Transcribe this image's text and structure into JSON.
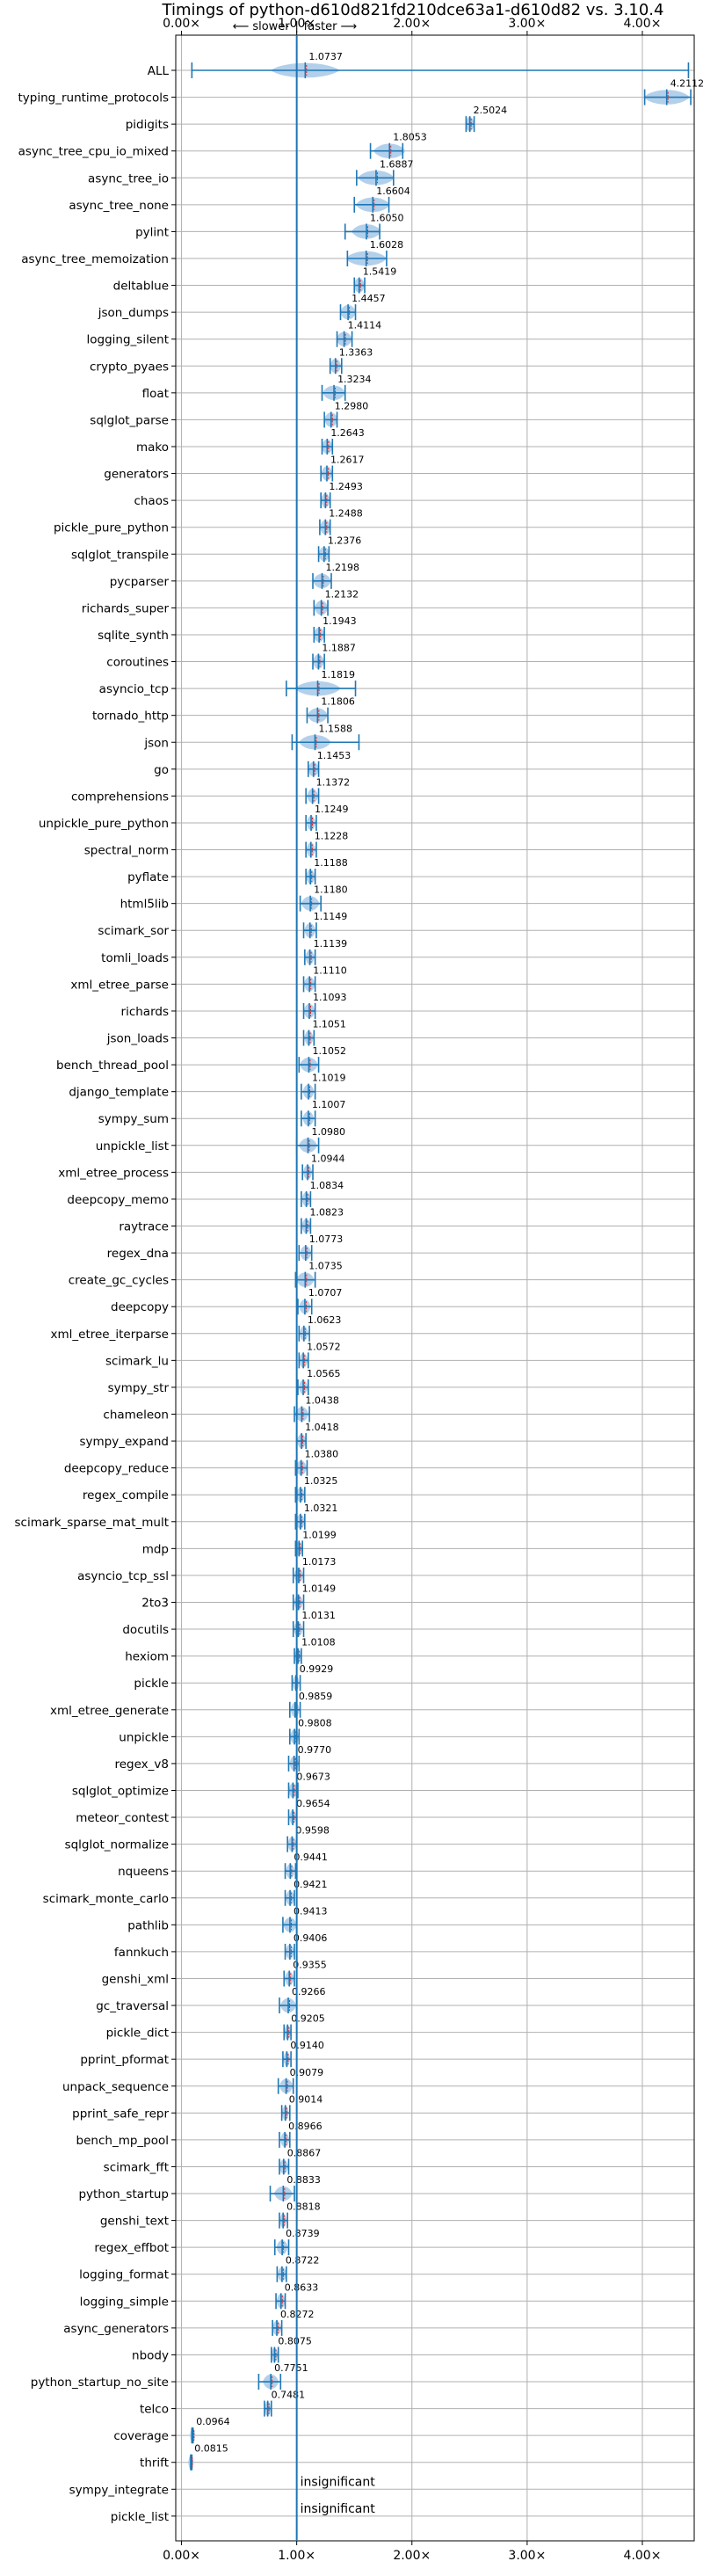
{
  "chart_data": {
    "type": "violin-errorbar",
    "title": "Timings of python-d610d821fd210dce63a1-d610d82 vs. 3.10.4",
    "direction_labels": {
      "slower": "⟵ slower",
      "separator": "|",
      "faster": "faster ⟶"
    },
    "xlim": [
      -0.05,
      4.45
    ],
    "xticks": [
      0,
      1,
      2,
      3,
      4
    ],
    "xtick_labels": [
      "0.00×",
      "1.00×",
      "2.00×",
      "3.00×",
      "4.00×"
    ],
    "reference_line": 1.0,
    "grid": true,
    "colors": {
      "accent": "#1f77b4",
      "violin": "#a6c8e8",
      "median": "#d62728",
      "grid": "#b0b0b0"
    },
    "benchmarks": [
      {
        "name": "ALL",
        "value": 1.0737,
        "label": "1.0737",
        "err_lo": 0.09,
        "err_hi": 4.4,
        "spread": 0.3
      },
      {
        "name": "typing_runtime_protocols",
        "value": 4.2112,
        "label": "4.2112",
        "err_lo": 4.02,
        "err_hi": 4.42,
        "spread": 0.2
      },
      {
        "name": "pidigits",
        "value": 2.5024,
        "label": "2.5024",
        "err_lo": 2.47,
        "err_hi": 2.54,
        "spread": 0.04
      },
      {
        "name": "async_tree_cpu_io_mixed",
        "value": 1.8053,
        "label": "1.8053",
        "err_lo": 1.64,
        "err_hi": 1.92,
        "spread": 0.14
      },
      {
        "name": "async_tree_io",
        "value": 1.6887,
        "label": "1.6887",
        "err_lo": 1.52,
        "err_hi": 1.84,
        "spread": 0.16
      },
      {
        "name": "async_tree_none",
        "value": 1.6604,
        "label": "1.6604",
        "err_lo": 1.5,
        "err_hi": 1.8,
        "spread": 0.15
      },
      {
        "name": "pylint",
        "value": 1.605,
        "label": "1.6050",
        "err_lo": 1.42,
        "err_hi": 1.72,
        "spread": 0.13
      },
      {
        "name": "async_tree_memoization",
        "value": 1.6028,
        "label": "1.6028",
        "err_lo": 1.44,
        "err_hi": 1.78,
        "spread": 0.18
      },
      {
        "name": "deltablue",
        "value": 1.5419,
        "label": "1.5419",
        "err_lo": 1.5,
        "err_hi": 1.59,
        "spread": 0.05
      },
      {
        "name": "json_dumps",
        "value": 1.4457,
        "label": "1.4457",
        "err_lo": 1.38,
        "err_hi": 1.51,
        "spread": 0.07
      },
      {
        "name": "logging_silent",
        "value": 1.4114,
        "label": "1.4114",
        "err_lo": 1.35,
        "err_hi": 1.48,
        "spread": 0.07
      },
      {
        "name": "crypto_pyaes",
        "value": 1.3363,
        "label": "1.3363",
        "err_lo": 1.29,
        "err_hi": 1.39,
        "spread": 0.05
      },
      {
        "name": "float",
        "value": 1.3234,
        "label": "1.3234",
        "err_lo": 1.22,
        "err_hi": 1.42,
        "spread": 0.1
      },
      {
        "name": "sqlglot_parse",
        "value": 1.298,
        "label": "1.2980",
        "err_lo": 1.24,
        "err_hi": 1.35,
        "spread": 0.06
      },
      {
        "name": "mako",
        "value": 1.2643,
        "label": "1.2643",
        "err_lo": 1.22,
        "err_hi": 1.31,
        "spread": 0.05
      },
      {
        "name": "generators",
        "value": 1.2617,
        "label": "1.2617",
        "err_lo": 1.21,
        "err_hi": 1.31,
        "spread": 0.05
      },
      {
        "name": "chaos",
        "value": 1.2493,
        "label": "1.2493",
        "err_lo": 1.21,
        "err_hi": 1.29,
        "spread": 0.04
      },
      {
        "name": "pickle_pure_python",
        "value": 1.2488,
        "label": "1.2488",
        "err_lo": 1.2,
        "err_hi": 1.29,
        "spread": 0.05
      },
      {
        "name": "sqlglot_transpile",
        "value": 1.2376,
        "label": "1.2376",
        "err_lo": 1.19,
        "err_hi": 1.28,
        "spread": 0.05
      },
      {
        "name": "pycparser",
        "value": 1.2198,
        "label": "1.2198",
        "err_lo": 1.14,
        "err_hi": 1.3,
        "spread": 0.08
      },
      {
        "name": "richards_super",
        "value": 1.2132,
        "label": "1.2132",
        "err_lo": 1.15,
        "err_hi": 1.27,
        "spread": 0.06
      },
      {
        "name": "sqlite_synth",
        "value": 1.1943,
        "label": "1.1943",
        "err_lo": 1.15,
        "err_hi": 1.24,
        "spread": 0.05
      },
      {
        "name": "coroutines",
        "value": 1.1887,
        "label": "1.1887",
        "err_lo": 1.14,
        "err_hi": 1.24,
        "spread": 0.05
      },
      {
        "name": "asyncio_tcp",
        "value": 1.1819,
        "label": "1.1819",
        "err_lo": 0.91,
        "err_hi": 1.51,
        "spread": 0.2
      },
      {
        "name": "tornado_http",
        "value": 1.1806,
        "label": "1.1806",
        "err_lo": 1.09,
        "err_hi": 1.27,
        "spread": 0.09
      },
      {
        "name": "json",
        "value": 1.1588,
        "label": "1.1588",
        "err_lo": 0.96,
        "err_hi": 1.54,
        "spread": 0.14
      },
      {
        "name": "go",
        "value": 1.1453,
        "label": "1.1453",
        "err_lo": 1.1,
        "err_hi": 1.19,
        "spread": 0.05
      },
      {
        "name": "comprehensions",
        "value": 1.1372,
        "label": "1.1372",
        "err_lo": 1.08,
        "err_hi": 1.19,
        "spread": 0.05
      },
      {
        "name": "unpickle_pure_python",
        "value": 1.1249,
        "label": "1.1249",
        "err_lo": 1.08,
        "err_hi": 1.17,
        "spread": 0.04
      },
      {
        "name": "spectral_norm",
        "value": 1.1228,
        "label": "1.1228",
        "err_lo": 1.08,
        "err_hi": 1.17,
        "spread": 0.04
      },
      {
        "name": "pyflate",
        "value": 1.1188,
        "label": "1.1188",
        "err_lo": 1.08,
        "err_hi": 1.16,
        "spread": 0.04
      },
      {
        "name": "html5lib",
        "value": 1.118,
        "label": "1.1180",
        "err_lo": 1.03,
        "err_hi": 1.21,
        "spread": 0.08
      },
      {
        "name": "scimark_sor",
        "value": 1.1149,
        "label": "1.1149",
        "err_lo": 1.06,
        "err_hi": 1.17,
        "spread": 0.05
      },
      {
        "name": "tomli_loads",
        "value": 1.1139,
        "label": "1.1139",
        "err_lo": 1.07,
        "err_hi": 1.16,
        "spread": 0.04
      },
      {
        "name": "xml_etree_parse",
        "value": 1.111,
        "label": "1.1110",
        "err_lo": 1.06,
        "err_hi": 1.16,
        "spread": 0.05
      },
      {
        "name": "richards",
        "value": 1.1093,
        "label": "1.1093",
        "err_lo": 1.06,
        "err_hi": 1.16,
        "spread": 0.05
      },
      {
        "name": "json_loads",
        "value": 1.1051,
        "label": "1.1051",
        "err_lo": 1.06,
        "err_hi": 1.15,
        "spread": 0.04
      },
      {
        "name": "bench_thread_pool",
        "value": 1.1052,
        "label": "1.1052",
        "err_lo": 1.02,
        "err_hi": 1.19,
        "spread": 0.08
      },
      {
        "name": "django_template",
        "value": 1.1019,
        "label": "1.1019",
        "err_lo": 1.04,
        "err_hi": 1.16,
        "spread": 0.05
      },
      {
        "name": "sympy_sum",
        "value": 1.1007,
        "label": "1.1007",
        "err_lo": 1.04,
        "err_hi": 1.16,
        "spread": 0.05
      },
      {
        "name": "unpickle_list",
        "value": 1.098,
        "label": "1.0980",
        "err_lo": 1.0,
        "err_hi": 1.19,
        "spread": 0.08
      },
      {
        "name": "xml_etree_process",
        "value": 1.0944,
        "label": "1.0944",
        "err_lo": 1.05,
        "err_hi": 1.14,
        "spread": 0.04
      },
      {
        "name": "deepcopy_memo",
        "value": 1.0834,
        "label": "1.0834",
        "err_lo": 1.04,
        "err_hi": 1.12,
        "spread": 0.04
      },
      {
        "name": "raytrace",
        "value": 1.0823,
        "label": "1.0823",
        "err_lo": 1.04,
        "err_hi": 1.12,
        "spread": 0.04
      },
      {
        "name": "regex_dna",
        "value": 1.0773,
        "label": "1.0773",
        "err_lo": 1.02,
        "err_hi": 1.13,
        "spread": 0.05
      },
      {
        "name": "create_gc_cycles",
        "value": 1.0735,
        "label": "1.0735",
        "err_lo": 0.99,
        "err_hi": 1.16,
        "spread": 0.08
      },
      {
        "name": "deepcopy",
        "value": 1.0707,
        "label": "1.0707",
        "err_lo": 1.01,
        "err_hi": 1.13,
        "spread": 0.05
      },
      {
        "name": "xml_etree_iterparse",
        "value": 1.0623,
        "label": "1.0623",
        "err_lo": 1.02,
        "err_hi": 1.11,
        "spread": 0.04
      },
      {
        "name": "scimark_lu",
        "value": 1.0572,
        "label": "1.0572",
        "err_lo": 1.02,
        "err_hi": 1.1,
        "spread": 0.04
      },
      {
        "name": "sympy_str",
        "value": 1.0565,
        "label": "1.0565",
        "err_lo": 1.01,
        "err_hi": 1.1,
        "spread": 0.04
      },
      {
        "name": "chameleon",
        "value": 1.0438,
        "label": "1.0438",
        "err_lo": 0.98,
        "err_hi": 1.11,
        "spread": 0.06
      },
      {
        "name": "sympy_expand",
        "value": 1.0418,
        "label": "1.0418",
        "err_lo": 1.0,
        "err_hi": 1.08,
        "spread": 0.04
      },
      {
        "name": "deepcopy_reduce",
        "value": 1.038,
        "label": "1.0380",
        "err_lo": 0.99,
        "err_hi": 1.09,
        "spread": 0.05
      },
      {
        "name": "regex_compile",
        "value": 1.0325,
        "label": "1.0325",
        "err_lo": 0.99,
        "err_hi": 1.07,
        "spread": 0.04
      },
      {
        "name": "scimark_sparse_mat_mult",
        "value": 1.0321,
        "label": "1.0321",
        "err_lo": 0.99,
        "err_hi": 1.07,
        "spread": 0.04
      },
      {
        "name": "mdp",
        "value": 1.0199,
        "label": "1.0199",
        "err_lo": 0.99,
        "err_hi": 1.05,
        "spread": 0.03
      },
      {
        "name": "asyncio_tcp_ssl",
        "value": 1.0173,
        "label": "1.0173",
        "err_lo": 0.97,
        "err_hi": 1.06,
        "spread": 0.04
      },
      {
        "name": "2to3",
        "value": 1.0149,
        "label": "1.0149",
        "err_lo": 0.97,
        "err_hi": 1.06,
        "spread": 0.04
      },
      {
        "name": "docutils",
        "value": 1.0131,
        "label": "1.0131",
        "err_lo": 0.97,
        "err_hi": 1.06,
        "spread": 0.04
      },
      {
        "name": "hexiom",
        "value": 1.0108,
        "label": "1.0108",
        "err_lo": 0.98,
        "err_hi": 1.04,
        "spread": 0.03
      },
      {
        "name": "pickle",
        "value": 0.9929,
        "label": "0.9929",
        "err_lo": 0.96,
        "err_hi": 1.03,
        "spread": 0.03
      },
      {
        "name": "xml_etree_generate",
        "value": 0.9859,
        "label": "0.9859",
        "err_lo": 0.94,
        "err_hi": 1.03,
        "spread": 0.04
      },
      {
        "name": "unpickle",
        "value": 0.9808,
        "label": "0.9808",
        "err_lo": 0.94,
        "err_hi": 1.02,
        "spread": 0.04
      },
      {
        "name": "regex_v8",
        "value": 0.977,
        "label": "0.9770",
        "err_lo": 0.93,
        "err_hi": 1.02,
        "spread": 0.04
      },
      {
        "name": "sqlglot_optimize",
        "value": 0.9673,
        "label": "0.9673",
        "err_lo": 0.93,
        "err_hi": 1.01,
        "spread": 0.04
      },
      {
        "name": "meteor_contest",
        "value": 0.9654,
        "label": "0.9654",
        "err_lo": 0.93,
        "err_hi": 1.0,
        "spread": 0.03
      },
      {
        "name": "sqlglot_normalize",
        "value": 0.9598,
        "label": "0.9598",
        "err_lo": 0.92,
        "err_hi": 1.0,
        "spread": 0.04
      },
      {
        "name": "nqueens",
        "value": 0.9441,
        "label": "0.9441",
        "err_lo": 0.9,
        "err_hi": 0.99,
        "spread": 0.04
      },
      {
        "name": "scimark_monte_carlo",
        "value": 0.9421,
        "label": "0.9421",
        "err_lo": 0.9,
        "err_hi": 0.98,
        "spread": 0.04
      },
      {
        "name": "pathlib",
        "value": 0.9413,
        "label": "0.9413",
        "err_lo": 0.88,
        "err_hi": 1.0,
        "spread": 0.06
      },
      {
        "name": "fannkuch",
        "value": 0.9406,
        "label": "0.9406",
        "err_lo": 0.9,
        "err_hi": 0.98,
        "spread": 0.04
      },
      {
        "name": "genshi_xml",
        "value": 0.9355,
        "label": "0.9355",
        "err_lo": 0.89,
        "err_hi": 0.98,
        "spread": 0.04
      },
      {
        "name": "gc_traversal",
        "value": 0.9266,
        "label": "0.9266",
        "err_lo": 0.85,
        "err_hi": 1.0,
        "spread": 0.07
      },
      {
        "name": "pickle_dict",
        "value": 0.9205,
        "label": "0.9205",
        "err_lo": 0.89,
        "err_hi": 0.95,
        "spread": 0.03
      },
      {
        "name": "pprint_pformat",
        "value": 0.914,
        "label": "0.9140",
        "err_lo": 0.88,
        "err_hi": 0.95,
        "spread": 0.03
      },
      {
        "name": "unpack_sequence",
        "value": 0.9079,
        "label": "0.9079",
        "err_lo": 0.84,
        "err_hi": 0.97,
        "spread": 0.06
      },
      {
        "name": "pprint_safe_repr",
        "value": 0.9014,
        "label": "0.9014",
        "err_lo": 0.87,
        "err_hi": 0.94,
        "spread": 0.03
      },
      {
        "name": "bench_mp_pool",
        "value": 0.8966,
        "label": "0.8966",
        "err_lo": 0.85,
        "err_hi": 0.94,
        "spread": 0.04
      },
      {
        "name": "scimark_fft",
        "value": 0.8867,
        "label": "0.8867",
        "err_lo": 0.85,
        "err_hi": 0.93,
        "spread": 0.04
      },
      {
        "name": "python_startup",
        "value": 0.8833,
        "label": "0.8833",
        "err_lo": 0.77,
        "err_hi": 0.98,
        "spread": 0.08
      },
      {
        "name": "genshi_text",
        "value": 0.8818,
        "label": "0.8818",
        "err_lo": 0.85,
        "err_hi": 0.92,
        "spread": 0.03
      },
      {
        "name": "regex_effbot",
        "value": 0.8739,
        "label": "0.8739",
        "err_lo": 0.81,
        "err_hi": 0.93,
        "spread": 0.05
      },
      {
        "name": "logging_format",
        "value": 0.8722,
        "label": "0.8722",
        "err_lo": 0.83,
        "err_hi": 0.91,
        "spread": 0.04
      },
      {
        "name": "logging_simple",
        "value": 0.8633,
        "label": "0.8633",
        "err_lo": 0.82,
        "err_hi": 0.9,
        "spread": 0.04
      },
      {
        "name": "async_generators",
        "value": 0.8272,
        "label": "0.8272",
        "err_lo": 0.79,
        "err_hi": 0.87,
        "spread": 0.04
      },
      {
        "name": "nbody",
        "value": 0.8075,
        "label": "0.8075",
        "err_lo": 0.78,
        "err_hi": 0.84,
        "spread": 0.03
      },
      {
        "name": "python_startup_no_site",
        "value": 0.7751,
        "label": "0.7751",
        "err_lo": 0.67,
        "err_hi": 0.86,
        "spread": 0.07
      },
      {
        "name": "telco",
        "value": 0.7481,
        "label": "0.7481",
        "err_lo": 0.72,
        "err_hi": 0.78,
        "spread": 0.03
      },
      {
        "name": "coverage",
        "value": 0.0964,
        "label": "0.0964",
        "err_lo": 0.09,
        "err_hi": 0.1,
        "spread": 0.005
      },
      {
        "name": "thrift",
        "value": 0.0815,
        "label": "0.0815",
        "err_lo": 0.08,
        "err_hi": 0.09,
        "spread": 0.005
      },
      {
        "name": "sympy_integrate",
        "value": null,
        "label": "insignificant"
      },
      {
        "name": "pickle_list",
        "value": null,
        "label": "insignificant"
      }
    ]
  }
}
